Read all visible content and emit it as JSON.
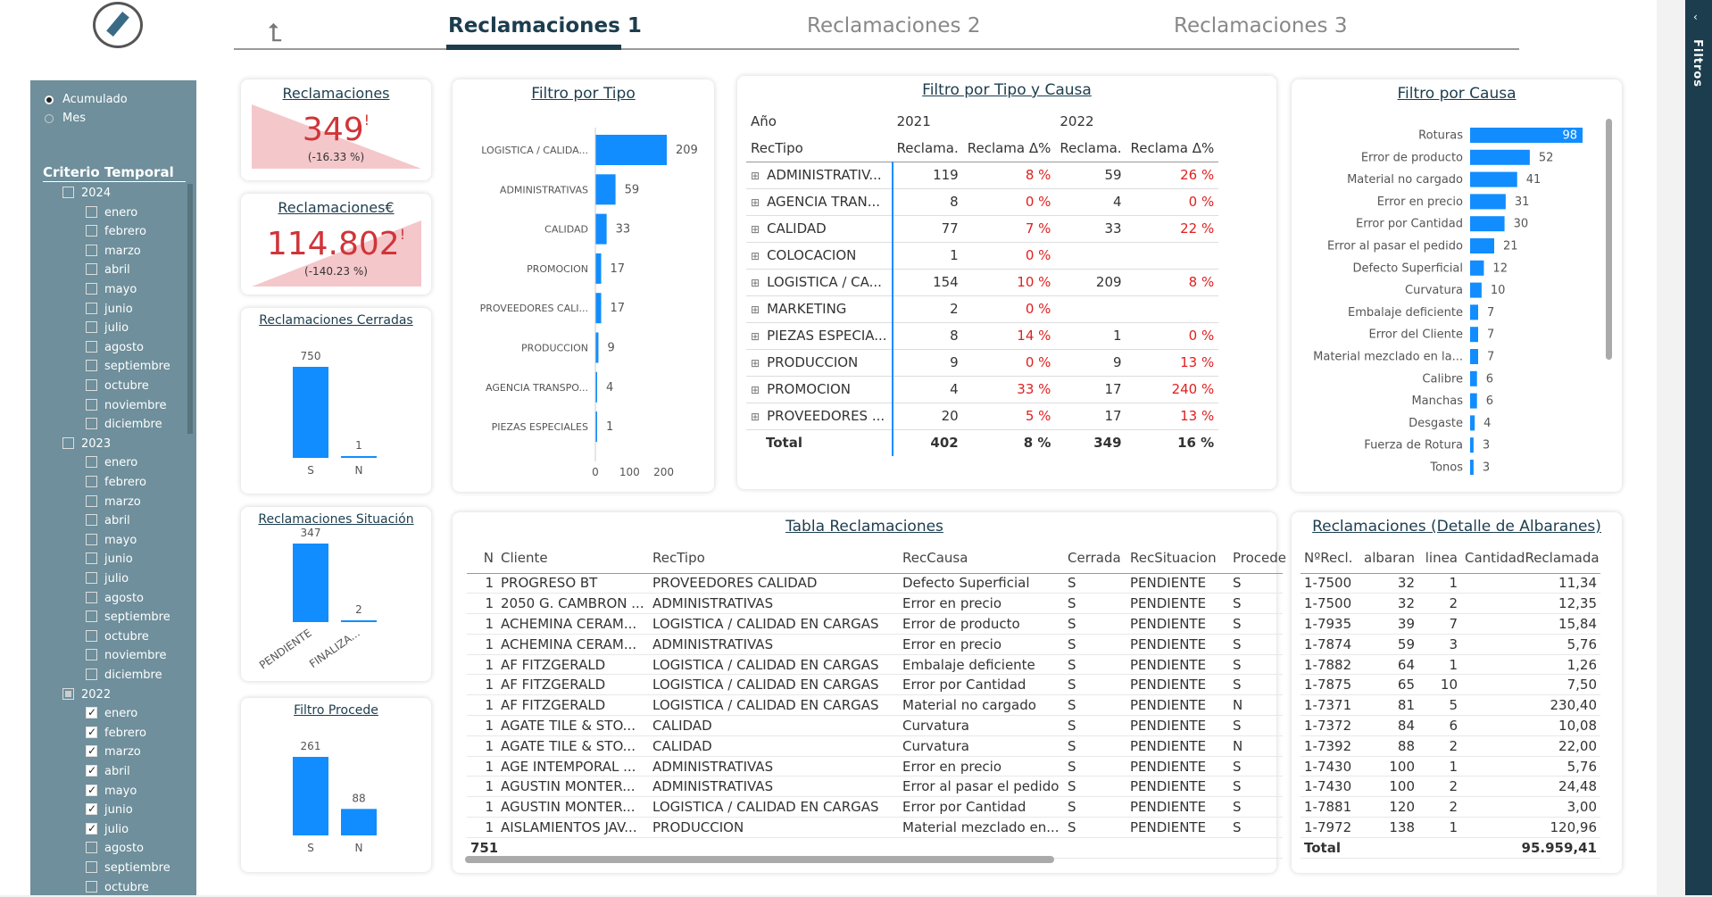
{
  "tabs": [
    "Reclamaciones 1",
    "Reclamaciones 2",
    "Reclamaciones 3"
  ],
  "right_pane": "Filtros",
  "left": {
    "radio": [
      "Acumulado",
      "Mes"
    ],
    "criterio": "Criterio Temporal",
    "y2024": "2024",
    "y2023": "2023",
    "y2022": "2022",
    "months": [
      "enero",
      "febrero",
      "marzo",
      "abril",
      "mayo",
      "junio",
      "julio",
      "agosto",
      "septiembre",
      "octubre",
      "noviembre",
      "diciembre"
    ]
  },
  "kpi1": {
    "title": "Reclamaciones",
    "value": "349",
    "excl": "!",
    "delta": "(-16.33 %)"
  },
  "kpi2": {
    "title": "Reclamaciones€",
    "value": "114.802",
    "excl": "!",
    "delta": "(-140.23 %)"
  },
  "cerradas": {
    "title": "Reclamaciones Cerradas",
    "labels": [
      "S",
      "N"
    ],
    "values": [
      750,
      1
    ]
  },
  "situacion": {
    "title": "Reclamaciones Situación",
    "labels": [
      "PENDIENTE",
      "FINALIZA..."
    ],
    "values": [
      347,
      2
    ]
  },
  "procede": {
    "title": "Filtro Procede",
    "labels": [
      "S",
      "N"
    ],
    "values": [
      261,
      88
    ]
  },
  "tipo": {
    "title": "Filtro por Tipo",
    "categories": [
      "LOGISTICA / CALIDA...",
      "ADMINISTRATIVAS",
      "CALIDAD",
      "PROMOCION",
      "PROVEEDORES CALI...",
      "PRODUCCION",
      "AGENCIA TRANSPO...",
      "PIEZAS ESPECIALES"
    ],
    "values": [
      209,
      59,
      33,
      17,
      17,
      9,
      4,
      1
    ],
    "ticks": [
      "0",
      "100",
      "200"
    ]
  },
  "matrix": {
    "title": "Filtro por Tipo y Causa",
    "year_label": "Año",
    "y1": "2021",
    "y2": "2022",
    "rectipo": "RecTipo",
    "h1": "Reclama.",
    "h2": "Reclama Δ%",
    "h3": "Reclama.",
    "h4": "Reclama Δ%",
    "expand": "⊞",
    "rows": [
      [
        "ADMINISTRATIV...",
        "119",
        "8 %",
        "59",
        "26 %"
      ],
      [
        "AGENCIA TRAN...",
        "8",
        "0 %",
        "4",
        "0 %"
      ],
      [
        "CALIDAD",
        "77",
        "7 %",
        "33",
        "22 %"
      ],
      [
        "COLOCACION",
        "1",
        "0 %",
        "",
        ""
      ],
      [
        "LOGISTICA / CA...",
        "154",
        "10 %",
        "209",
        "8 %"
      ],
      [
        "MARKETING",
        "2",
        "0 %",
        "",
        ""
      ],
      [
        "PIEZAS ESPECIA...",
        "8",
        "14 %",
        "1",
        "0 %"
      ],
      [
        "PRODUCCION",
        "9",
        "0 %",
        "9",
        "13 %"
      ],
      [
        "PROMOCION",
        "4",
        "33 %",
        "17",
        "240 %"
      ],
      [
        "PROVEEDORES ...",
        "20",
        "5 %",
        "17",
        "13 %"
      ]
    ],
    "total": [
      "Total",
      "402",
      "8 %",
      "349",
      "16 %"
    ]
  },
  "causa": {
    "title": "Filtro por Causa",
    "categories": [
      "Roturas",
      "Error de producto",
      "Material no cargado",
      "Error en precio",
      "Error por Cantidad",
      "Error al pasar el pedido",
      "Defecto Superficial",
      "Curvatura",
      "Embalaje deficiente",
      "Error del Cliente",
      "Material mezclado en la...",
      "Calibre",
      "Manchas",
      "Desgaste",
      "Fuerza de Rotura",
      "Tonos"
    ],
    "values": [
      98,
      52,
      41,
      31,
      30,
      21,
      12,
      10,
      7,
      7,
      7,
      6,
      6,
      4,
      3,
      3
    ]
  },
  "tabla": {
    "title": "Tabla Reclamaciones",
    "headers": [
      "N",
      "Cliente",
      "RecTipo",
      "RecCausa",
      "Cerrada",
      "RecSituacion",
      "Procede"
    ],
    "rows": [
      [
        "1",
        "PROGRESO BT",
        "PROVEEDORES CALIDAD",
        "Defecto Superficial",
        "S",
        "PENDIENTE",
        "S"
      ],
      [
        "1",
        "2050 G. CAMBRON ...",
        "ADMINISTRATIVAS",
        "Error en precio",
        "S",
        "PENDIENTE",
        "S"
      ],
      [
        "1",
        "ACHEMINA CERAM...",
        "LOGISTICA / CALIDAD EN CARGAS",
        "Error de producto",
        "S",
        "PENDIENTE",
        "S"
      ],
      [
        "1",
        "ACHEMINA CERAM...",
        "ADMINISTRATIVAS",
        "Error en precio",
        "S",
        "PENDIENTE",
        "S"
      ],
      [
        "1",
        "AF FITZGERALD",
        "LOGISTICA / CALIDAD EN CARGAS",
        "Embalaje deficiente",
        "S",
        "PENDIENTE",
        "S"
      ],
      [
        "1",
        "AF FITZGERALD",
        "LOGISTICA / CALIDAD EN CARGAS",
        "Error por Cantidad",
        "S",
        "PENDIENTE",
        "S"
      ],
      [
        "1",
        "AF FITZGERALD",
        "LOGISTICA / CALIDAD EN CARGAS",
        "Material no cargado",
        "S",
        "PENDIENTE",
        "N"
      ],
      [
        "1",
        "AGATE TILE & STO...",
        "CALIDAD",
        "Curvatura",
        "S",
        "PENDIENTE",
        "S"
      ],
      [
        "1",
        "AGATE TILE & STO...",
        "CALIDAD",
        "Curvatura",
        "S",
        "PENDIENTE",
        "N"
      ],
      [
        "1",
        "AGE INTEMPORAL ...",
        "ADMINISTRATIVAS",
        "Error en precio",
        "S",
        "PENDIENTE",
        "S"
      ],
      [
        "1",
        "AGUSTIN MONTER...",
        "ADMINISTRATIVAS",
        "Error al pasar el pedido",
        "S",
        "PENDIENTE",
        "S"
      ],
      [
        "1",
        "AGUSTIN MONTER...",
        "LOGISTICA / CALIDAD EN CARGAS",
        "Error por Cantidad",
        "S",
        "PENDIENTE",
        "S"
      ],
      [
        "1",
        "AISLAMIENTOS JAV...",
        "PRODUCCION",
        "Material mezclado en...",
        "S",
        "PENDIENTE",
        "S"
      ]
    ],
    "total": "751"
  },
  "detalle": {
    "title": "Reclamaciones (Detalle de Albaranes)",
    "headers": [
      "NºRecl.",
      "albaran",
      "linea",
      "CantidadReclamada"
    ],
    "rows": [
      [
        "1-7500",
        "32",
        "1",
        "11,34"
      ],
      [
        "1-7500",
        "32",
        "2",
        "12,35"
      ],
      [
        "1-7935",
        "39",
        "7",
        "15,84"
      ],
      [
        "1-7874",
        "59",
        "3",
        "5,76"
      ],
      [
        "1-7882",
        "64",
        "1",
        "1,26"
      ],
      [
        "1-7875",
        "65",
        "10",
        "7,50"
      ],
      [
        "1-7371",
        "81",
        "5",
        "230,40"
      ],
      [
        "1-7372",
        "84",
        "6",
        "10,08"
      ],
      [
        "1-7392",
        "88",
        "2",
        "22,00"
      ],
      [
        "1-7430",
        "100",
        "1",
        "5,76"
      ],
      [
        "1-7430",
        "100",
        "2",
        "24,48"
      ],
      [
        "1-7881",
        "120",
        "2",
        "3,00"
      ],
      [
        "1-7972",
        "138",
        "1",
        "120,96"
      ]
    ],
    "total_label": "Total",
    "total": "95.959,41"
  }
}
